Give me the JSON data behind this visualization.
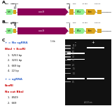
{
  "fig_width": 1.58,
  "fig_height": 1.5,
  "dpi": 100,
  "text_blue": "#3366CC",
  "text_red": "#CC0000",
  "text_black": "#000000",
  "arrow_cas9_color": "#8B0057",
  "arrow_ef1a_color": "#90EE90",
  "arrow_puro_color": "#DAA520",
  "arrow_hU6_color": "#90EE90",
  "arrow_sgRNA_color": "#DAA520",
  "arrow_bgh_color": "#DAA520",
  "gel_bg": "#111111",
  "band_white": "#ffffff",
  "band_grey": "#999999",
  "label_grey": "#aaaaaa"
}
